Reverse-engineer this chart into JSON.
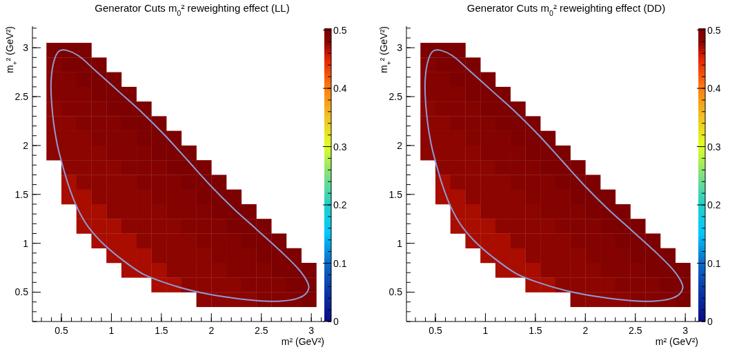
{
  "chart_data": [
    {
      "type": "heatmap",
      "title": "Generator Cuts m$_{0}$² reweighting effect (LL)",
      "xlabel": "m² (GeV²)",
      "ylabel": "m$_{+}$² (GeV²)",
      "x": [
        0.425,
        0.575,
        0.725,
        0.875,
        1.025,
        1.175,
        1.325,
        1.475,
        1.625,
        1.775,
        1.925,
        2.075,
        2.225,
        2.375,
        2.525,
        2.675,
        2.825,
        2.975
      ],
      "y": [
        2.975,
        2.825,
        2.675,
        2.525,
        2.375,
        2.225,
        2.075,
        1.925,
        1.775,
        1.625,
        1.475,
        1.325,
        1.175,
        1.025,
        0.875,
        0.725,
        0.575,
        0.425
      ],
      "cells": [
        [
          0.5,
          0.5,
          0.5,
          null,
          null,
          null,
          null,
          null,
          null,
          null,
          null,
          null,
          null,
          null,
          null,
          null,
          null,
          null
        ],
        [
          0.49,
          0.5,
          0.5,
          0.5,
          null,
          null,
          null,
          null,
          null,
          null,
          null,
          null,
          null,
          null,
          null,
          null,
          null,
          null
        ],
        [
          0.49,
          0.49,
          0.5,
          0.5,
          0.5,
          null,
          null,
          null,
          null,
          null,
          null,
          null,
          null,
          null,
          null,
          null,
          null,
          null
        ],
        [
          0.49,
          0.49,
          0.49,
          0.5,
          0.5,
          0.5,
          null,
          null,
          null,
          null,
          null,
          null,
          null,
          null,
          null,
          null,
          null,
          null
        ],
        [
          0.48,
          0.49,
          0.49,
          0.49,
          0.5,
          0.5,
          0.5,
          null,
          null,
          null,
          null,
          null,
          null,
          null,
          null,
          null,
          null,
          null
        ],
        [
          0.48,
          0.48,
          0.49,
          0.49,
          0.49,
          0.5,
          0.5,
          0.5,
          null,
          null,
          null,
          null,
          null,
          null,
          null,
          null,
          null,
          null
        ],
        [
          0.48,
          0.48,
          0.48,
          0.49,
          0.49,
          0.49,
          0.5,
          0.5,
          0.5,
          null,
          null,
          null,
          null,
          null,
          null,
          null,
          null,
          null
        ],
        [
          0.48,
          0.48,
          0.48,
          0.48,
          0.49,
          0.49,
          0.49,
          0.5,
          0.5,
          0.5,
          null,
          null,
          null,
          null,
          null,
          null,
          null,
          null
        ],
        [
          null,
          0.48,
          0.48,
          0.48,
          0.48,
          0.49,
          0.49,
          0.49,
          0.5,
          0.5,
          0.5,
          null,
          null,
          null,
          null,
          null,
          null,
          null
        ],
        [
          null,
          0.47,
          0.48,
          0.48,
          0.48,
          0.48,
          0.49,
          0.49,
          0.49,
          0.5,
          0.5,
          0.5,
          null,
          null,
          null,
          null,
          null,
          null
        ],
        [
          null,
          0.47,
          0.47,
          0.48,
          0.48,
          0.48,
          0.48,
          0.49,
          0.49,
          0.49,
          0.5,
          0.5,
          0.5,
          null,
          null,
          null,
          null,
          null
        ],
        [
          null,
          null,
          0.47,
          0.47,
          0.48,
          0.48,
          0.48,
          0.48,
          0.49,
          0.49,
          0.49,
          0.5,
          0.5,
          0.5,
          null,
          null,
          null,
          null
        ],
        [
          null,
          null,
          0.47,
          0.47,
          0.47,
          0.48,
          0.48,
          0.48,
          0.48,
          0.49,
          0.49,
          0.49,
          0.5,
          0.5,
          0.5,
          null,
          null,
          null
        ],
        [
          null,
          null,
          null,
          0.47,
          0.47,
          0.47,
          0.48,
          0.48,
          0.48,
          0.48,
          0.49,
          0.49,
          0.49,
          0.5,
          0.5,
          0.5,
          null,
          null
        ],
        [
          null,
          null,
          null,
          null,
          0.47,
          0.47,
          0.47,
          0.48,
          0.48,
          0.48,
          0.48,
          0.49,
          0.49,
          0.49,
          0.5,
          0.5,
          0.5,
          null
        ],
        [
          null,
          null,
          null,
          null,
          null,
          0.47,
          0.47,
          0.47,
          0.48,
          0.48,
          0.48,
          0.48,
          0.49,
          0.49,
          0.49,
          0.5,
          0.5,
          0.5
        ],
        [
          null,
          null,
          null,
          null,
          null,
          null,
          null,
          0.47,
          0.47,
          0.48,
          0.48,
          0.48,
          0.48,
          0.49,
          0.49,
          0.49,
          0.5,
          0.5
        ],
        [
          null,
          null,
          null,
          null,
          null,
          null,
          null,
          null,
          null,
          null,
          0.48,
          0.48,
          0.48,
          0.48,
          0.49,
          0.49,
          0.49,
          0.5
        ]
      ],
      "xlim": [
        0.21,
        3.13
      ],
      "ylim": [
        0.2,
        3.22
      ],
      "xticks": [
        0.5,
        1,
        1.5,
        2,
        2.5,
        3
      ],
      "yticks": [
        0.5,
        1,
        1.5,
        2,
        2.5,
        3
      ],
      "clim": [
        0,
        0.503
      ],
      "cticks": [
        0,
        0.1,
        0.2,
        0.3,
        0.4,
        0.5
      ]
    },
    {
      "type": "heatmap",
      "title": "Generator Cuts m$_{0}$² reweighting effect (DD)",
      "xlabel": "m² (GeV²)",
      "ylabel": "m$_{+}$² (GeV²)",
      "x": [
        0.425,
        0.575,
        0.725,
        0.875,
        1.025,
        1.175,
        1.325,
        1.475,
        1.625,
        1.775,
        1.925,
        2.075,
        2.225,
        2.375,
        2.525,
        2.675,
        2.825,
        2.975
      ],
      "y": [
        2.975,
        2.825,
        2.675,
        2.525,
        2.375,
        2.225,
        2.075,
        1.925,
        1.775,
        1.625,
        1.475,
        1.325,
        1.175,
        1.025,
        0.875,
        0.725,
        0.575,
        0.425
      ],
      "cells": [
        [
          0.5,
          0.5,
          0.5,
          null,
          null,
          null,
          null,
          null,
          null,
          null,
          null,
          null,
          null,
          null,
          null,
          null,
          null,
          null
        ],
        [
          0.49,
          0.5,
          0.5,
          0.5,
          null,
          null,
          null,
          null,
          null,
          null,
          null,
          null,
          null,
          null,
          null,
          null,
          null,
          null
        ],
        [
          0.49,
          0.49,
          0.5,
          0.5,
          0.5,
          null,
          null,
          null,
          null,
          null,
          null,
          null,
          null,
          null,
          null,
          null,
          null,
          null
        ],
        [
          0.49,
          0.49,
          0.49,
          0.5,
          0.5,
          0.5,
          null,
          null,
          null,
          null,
          null,
          null,
          null,
          null,
          null,
          null,
          null,
          null
        ],
        [
          0.48,
          0.49,
          0.49,
          0.49,
          0.5,
          0.5,
          0.5,
          null,
          null,
          null,
          null,
          null,
          null,
          null,
          null,
          null,
          null,
          null
        ],
        [
          0.48,
          0.48,
          0.49,
          0.49,
          0.49,
          0.5,
          0.5,
          0.5,
          null,
          null,
          null,
          null,
          null,
          null,
          null,
          null,
          null,
          null
        ],
        [
          0.48,
          0.48,
          0.48,
          0.49,
          0.49,
          0.49,
          0.5,
          0.5,
          0.5,
          null,
          null,
          null,
          null,
          null,
          null,
          null,
          null,
          null
        ],
        [
          0.48,
          0.48,
          0.48,
          0.48,
          0.49,
          0.49,
          0.49,
          0.5,
          0.5,
          0.5,
          null,
          null,
          null,
          null,
          null,
          null,
          null,
          null
        ],
        [
          null,
          0.48,
          0.48,
          0.48,
          0.48,
          0.49,
          0.49,
          0.49,
          0.5,
          0.5,
          0.5,
          null,
          null,
          null,
          null,
          null,
          null,
          null
        ],
        [
          null,
          0.47,
          0.48,
          0.48,
          0.48,
          0.48,
          0.49,
          0.49,
          0.49,
          0.5,
          0.5,
          0.5,
          null,
          null,
          null,
          null,
          null,
          null
        ],
        [
          null,
          0.47,
          0.47,
          0.48,
          0.48,
          0.48,
          0.48,
          0.49,
          0.49,
          0.49,
          0.5,
          0.5,
          0.5,
          null,
          null,
          null,
          null,
          null
        ],
        [
          null,
          null,
          0.47,
          0.47,
          0.48,
          0.48,
          0.48,
          0.48,
          0.49,
          0.49,
          0.49,
          0.5,
          0.5,
          0.5,
          null,
          null,
          null,
          null
        ],
        [
          null,
          null,
          0.47,
          0.47,
          0.47,
          0.48,
          0.48,
          0.48,
          0.48,
          0.49,
          0.49,
          0.49,
          0.5,
          0.5,
          0.5,
          null,
          null,
          null
        ],
        [
          null,
          null,
          null,
          0.47,
          0.47,
          0.47,
          0.48,
          0.48,
          0.48,
          0.48,
          0.49,
          0.49,
          0.49,
          0.5,
          0.5,
          0.5,
          null,
          null
        ],
        [
          null,
          null,
          null,
          null,
          0.47,
          0.47,
          0.47,
          0.48,
          0.48,
          0.48,
          0.48,
          0.49,
          0.49,
          0.49,
          0.5,
          0.5,
          0.5,
          null
        ],
        [
          null,
          null,
          null,
          null,
          null,
          0.47,
          0.47,
          0.47,
          0.48,
          0.48,
          0.48,
          0.48,
          0.49,
          0.49,
          0.49,
          0.5,
          0.5,
          0.5
        ],
        [
          null,
          null,
          null,
          null,
          null,
          null,
          null,
          0.47,
          0.47,
          0.48,
          0.48,
          0.48,
          0.48,
          0.49,
          0.49,
          0.49,
          0.5,
          0.5
        ],
        [
          null,
          null,
          null,
          null,
          null,
          null,
          null,
          null,
          null,
          null,
          0.48,
          0.48,
          0.48,
          0.48,
          0.49,
          0.49,
          0.49,
          0.5
        ]
      ],
      "xlim": [
        0.21,
        3.13
      ],
      "ylim": [
        0.2,
        3.22
      ],
      "xticks": [
        0.5,
        1,
        1.5,
        2,
        2.5,
        3
      ],
      "yticks": [
        0.5,
        1,
        1.5,
        2,
        2.5,
        3
      ],
      "clim": [
        0,
        0.503
      ],
      "cticks": [
        0,
        0.1,
        0.2,
        0.3,
        0.4,
        0.5
      ]
    }
  ]
}
